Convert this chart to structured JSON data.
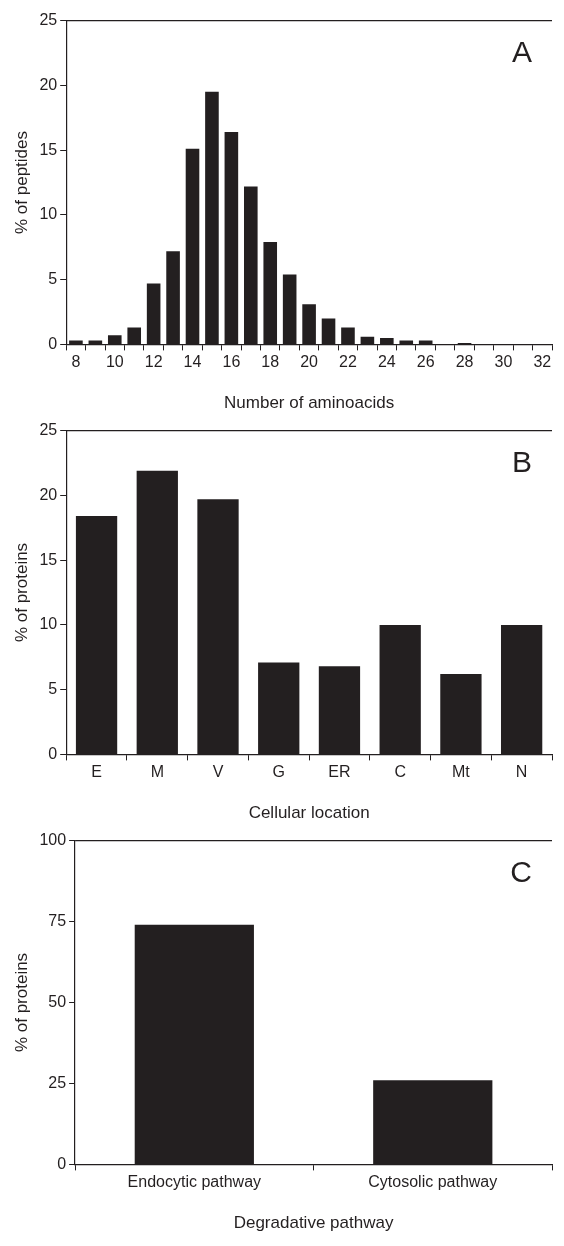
{
  "chart_data": [
    {
      "type": "bar",
      "xlabel": "Number of aminoacids",
      "ylabel": "% of peptides",
      "annotations": [
        "A"
      ],
      "categories": [
        "8",
        null,
        "10",
        null,
        "12",
        null,
        "14",
        null,
        "16",
        null,
        "18",
        null,
        "20",
        null,
        "22",
        null,
        "24",
        null,
        "26",
        null,
        "28",
        null,
        "30",
        null,
        "32"
      ],
      "values": [
        0.3,
        0.3,
        0.7,
        1.3,
        4.7,
        7.2,
        15.1,
        19.5,
        16.4,
        12.2,
        7.9,
        5.4,
        3.1,
        2.0,
        1.3,
        0.6,
        0.5,
        0.3,
        0.3,
        0,
        0.1,
        0,
        0,
        0,
        0
      ],
      "color": "#231f20",
      "ylim": [
        0,
        25
      ],
      "yticks": [
        0,
        5,
        10,
        15,
        20,
        25
      ]
    },
    {
      "type": "bar",
      "xlabel": "Cellular location",
      "ylabel": "% of proteins",
      "annotations": [
        "B"
      ],
      "categories": [
        "E",
        "M",
        "V",
        "G",
        "ER",
        "C",
        "Mt",
        "N"
      ],
      "values": [
        18.4,
        21.9,
        19.7,
        7.1,
        6.8,
        10,
        6.2,
        10
      ],
      "color": "#231f20",
      "ylim": [
        0,
        25
      ],
      "yticks": [
        0,
        5,
        10,
        15,
        20,
        25
      ]
    },
    {
      "type": "bar",
      "xlabel": "Degradative pathway",
      "ylabel": "% of proteins",
      "annotations": [
        "C"
      ],
      "categories": [
        "Endocytic pathway",
        "Cytosolic pathway"
      ],
      "values": [
        74,
        26
      ],
      "color": "#231f20",
      "ylim": [
        0,
        100
      ],
      "yticks": [
        0,
        25,
        50,
        75,
        100
      ]
    }
  ]
}
